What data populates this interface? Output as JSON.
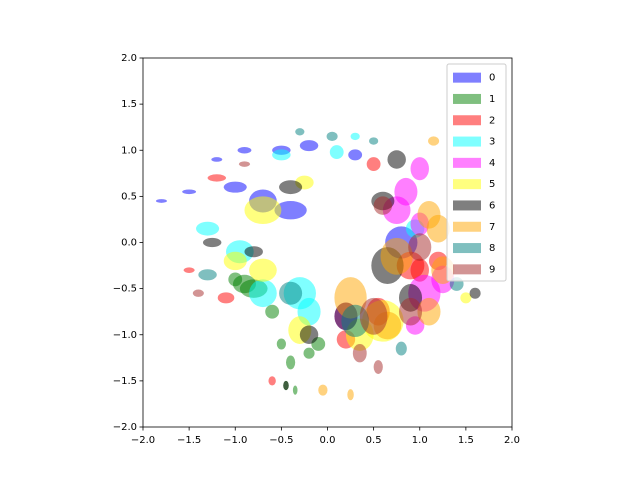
{
  "chart_data": {
    "type": "scatter",
    "alpha": 0.5,
    "legend": "upper right",
    "xlim": [
      -2,
      2
    ],
    "ylim": [
      -2,
      2
    ],
    "xticks": [
      {
        "value": -2,
        "label": "−2.0"
      },
      {
        "value": -1.5,
        "label": "−1.5"
      },
      {
        "value": -1,
        "label": "−1.0"
      },
      {
        "value": -0.5,
        "label": "−0.5"
      },
      {
        "value": 0,
        "label": "0.0"
      },
      {
        "value": 0.5,
        "label": "0.5"
      },
      {
        "value": 1,
        "label": "1.0"
      },
      {
        "value": 1.5,
        "label": "1.5"
      },
      {
        "value": 2,
        "label": "2.0"
      }
    ],
    "yticks": [
      {
        "value": -2,
        "label": "−2.0"
      },
      {
        "value": -1.5,
        "label": "−1.5"
      },
      {
        "value": -1,
        "label": "−1.0"
      },
      {
        "value": -0.5,
        "label": "−0.5"
      },
      {
        "value": 0,
        "label": "0.0"
      },
      {
        "value": 0.5,
        "label": "0.5"
      },
      {
        "value": 1,
        "label": "1.0"
      },
      {
        "value": 1.5,
        "label": "1.5"
      },
      {
        "value": 2,
        "label": "2.0"
      }
    ],
    "series": [
      {
        "name": "0",
        "color": "#0000ff",
        "x": [
          -1.8,
          -1.5,
          -1.2,
          -0.9,
          -0.5,
          -0.4,
          -0.7,
          0.8,
          0.3,
          -0.2,
          -1.0
        ],
        "y": [
          0.45,
          0.55,
          0.9,
          1.0,
          1.0,
          0.35,
          0.45,
          0.0,
          0.95,
          1.05,
          0.6
        ],
        "width": [
          0.12,
          0.15,
          0.12,
          0.15,
          0.2,
          0.35,
          0.3,
          0.35,
          0.15,
          0.2,
          0.25
        ],
        "height": [
          0.04,
          0.05,
          0.05,
          0.07,
          0.1,
          0.2,
          0.25,
          0.35,
          0.12,
          0.12,
          0.12
        ]
      },
      {
        "name": "1",
        "color": "#008000",
        "x": [
          -0.9,
          -0.8,
          -0.6,
          -0.5,
          -0.4,
          -0.2,
          -0.45,
          -0.35,
          -1.0,
          -0.1
        ],
        "y": [
          -0.45,
          -0.5,
          -0.75,
          -1.1,
          -1.3,
          -1.2,
          -1.55,
          -1.6,
          -0.4,
          -1.1
        ],
        "width": [
          0.25,
          0.3,
          0.15,
          0.1,
          0.1,
          0.12,
          0.06,
          0.05,
          0.15,
          0.15
        ],
        "height": [
          0.2,
          0.2,
          0.15,
          0.12,
          0.15,
          0.12,
          0.1,
          0.1,
          0.15,
          0.15
        ]
      },
      {
        "name": "2",
        "color": "#ff0000",
        "x": [
          -1.1,
          -1.5,
          -1.2,
          0.5,
          1.0,
          0.9,
          0.2,
          -0.6,
          0.55,
          1.2
        ],
        "y": [
          -0.6,
          -0.3,
          0.7,
          0.85,
          -0.3,
          -0.25,
          -1.05,
          -1.5,
          -0.75,
          -0.2
        ],
        "width": [
          0.18,
          0.12,
          0.2,
          0.15,
          0.2,
          0.3,
          0.2,
          0.08,
          0.25,
          0.2
        ],
        "height": [
          0.12,
          0.06,
          0.08,
          0.15,
          0.25,
          0.3,
          0.2,
          0.1,
          0.3,
          0.2
        ]
      },
      {
        "name": "3",
        "color": "#00ffff",
        "x": [
          -0.3,
          -0.95,
          -1.3,
          -0.5,
          0.1,
          0.3,
          -0.2,
          0.95,
          -0.7
        ],
        "y": [
          -0.55,
          -0.1,
          0.15,
          0.95,
          0.98,
          1.15,
          -0.75,
          0.15,
          -0.55
        ],
        "width": [
          0.35,
          0.3,
          0.25,
          0.2,
          0.15,
          0.1,
          0.25,
          0.2,
          0.3
        ],
        "height": [
          0.35,
          0.25,
          0.15,
          0.12,
          0.15,
          0.08,
          0.3,
          0.2,
          0.3
        ]
      },
      {
        "name": "4",
        "color": "#ff00ff",
        "x": [
          0.85,
          1.0,
          1.05,
          1.25,
          0.95,
          0.75,
          1.0,
          0.2
        ],
        "y": [
          0.55,
          0.8,
          -0.55,
          -0.4,
          -0.9,
          0.35,
          0.2,
          -0.8
        ],
        "width": [
          0.25,
          0.2,
          0.35,
          0.25,
          0.2,
          0.3,
          0.2,
          0.25
        ],
        "height": [
          0.3,
          0.25,
          0.4,
          0.3,
          0.2,
          0.3,
          0.25,
          0.3
        ]
      },
      {
        "name": "5",
        "color": "#ffff00",
        "x": [
          -0.7,
          -0.25,
          0.6,
          -0.7,
          -0.3,
          1.5,
          0.35,
          -1.0
        ],
        "y": [
          0.35,
          0.65,
          -0.85,
          -0.3,
          -0.95,
          -0.6,
          -1.0,
          -0.2
        ],
        "width": [
          0.4,
          0.2,
          0.45,
          0.3,
          0.25,
          0.12,
          0.3,
          0.25
        ],
        "height": [
          0.3,
          0.15,
          0.45,
          0.25,
          0.3,
          0.12,
          0.35,
          0.2
        ]
      },
      {
        "name": "6",
        "color": "#000000",
        "x": [
          -0.4,
          -1.25,
          -0.8,
          0.65,
          0.6,
          0.75,
          -0.2,
          0.2,
          -0.45,
          0.9,
          1.6
        ],
        "y": [
          0.6,
          0.0,
          -0.1,
          -0.25,
          0.45,
          0.9,
          -1.0,
          -0.8,
          -1.55,
          -0.6,
          -0.55
        ],
        "width": [
          0.25,
          0.2,
          0.2,
          0.35,
          0.25,
          0.2,
          0.2,
          0.25,
          0.06,
          0.25,
          0.12
        ],
        "height": [
          0.15,
          0.1,
          0.12,
          0.4,
          0.2,
          0.2,
          0.2,
          0.3,
          0.1,
          0.3,
          0.12
        ]
      },
      {
        "name": "7",
        "color": "#ffa500",
        "x": [
          0.25,
          0.75,
          1.1,
          1.1,
          0.65,
          -0.05,
          0.25,
          1.2,
          1.15,
          1.25
        ],
        "y": [
          -0.6,
          -0.15,
          0.3,
          -0.75,
          -0.9,
          -1.6,
          -1.65,
          0.15,
          1.1,
          -0.3
        ],
        "width": [
          0.35,
          0.35,
          0.25,
          0.25,
          0.3,
          0.1,
          0.07,
          0.25,
          0.12,
          0.25
        ],
        "height": [
          0.45,
          0.4,
          0.3,
          0.3,
          0.3,
          0.12,
          0.12,
          0.3,
          0.1,
          0.3
        ]
      },
      {
        "name": "8",
        "color": "#008080",
        "x": [
          0.05,
          -0.4,
          0.8,
          -1.3,
          1.4,
          0.3,
          0.5,
          -0.3
        ],
        "y": [
          1.15,
          -0.55,
          -1.15,
          -0.35,
          -0.45,
          -0.85,
          1.1,
          1.2
        ],
        "width": [
          0.12,
          0.25,
          0.12,
          0.2,
          0.15,
          0.3,
          0.1,
          0.1
        ],
        "height": [
          0.1,
          0.25,
          0.15,
          0.12,
          0.15,
          0.35,
          0.08,
          0.08
        ]
      },
      {
        "name": "9",
        "color": "#a52a2a",
        "x": [
          0.5,
          0.35,
          0.55,
          1.0,
          -1.4,
          -0.9,
          0.9,
          0.6
        ],
        "y": [
          -0.8,
          -1.2,
          -1.35,
          -0.05,
          -0.55,
          0.85,
          -0.75,
          0.4
        ],
        "width": [
          0.3,
          0.15,
          0.1,
          0.25,
          0.12,
          0.12,
          0.25,
          0.2
        ],
        "height": [
          0.4,
          0.2,
          0.15,
          0.3,
          0.08,
          0.06,
          0.3,
          0.2
        ]
      }
    ]
  }
}
